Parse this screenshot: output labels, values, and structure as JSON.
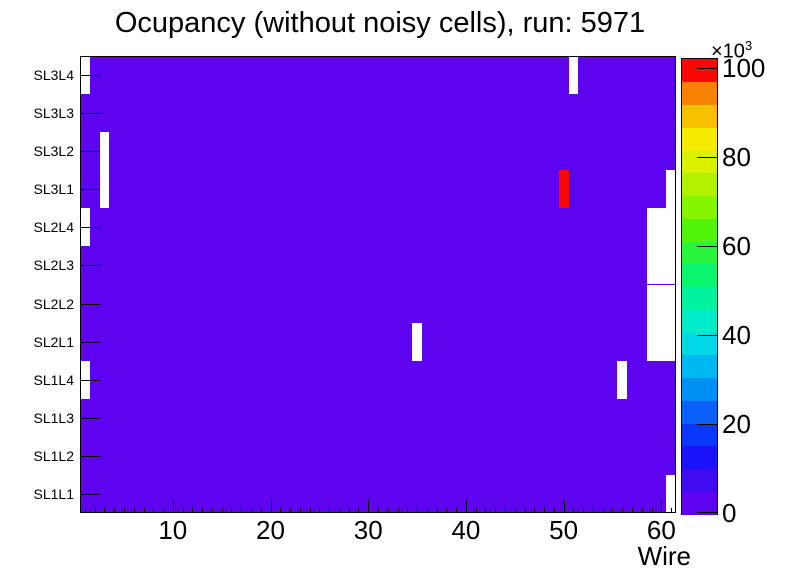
{
  "title": "Ocupancy (without noisy cells), run: 5971",
  "chart_data": {
    "type": "heatmap",
    "xlabel": "Wire",
    "x_range": [
      0.5,
      61.5
    ],
    "n_wires": 61,
    "x_major_ticks": [
      10,
      20,
      30,
      40,
      50,
      60
    ],
    "rows_bottom_to_top": [
      "SL1L1",
      "SL1L2",
      "SL1L3",
      "SL1L4",
      "SL2L1",
      "SL2L2",
      "SL2L3",
      "SL2L4",
      "SL3L1",
      "SL3L2",
      "SL3L3",
      "SL3L4"
    ],
    "background_value_color": "#5e03f0",
    "empty_color": "#ffffff",
    "empty_cells": [
      {
        "wire": 1,
        "row": "SL3L4"
      },
      {
        "wire": 1,
        "row": "SL2L4"
      },
      {
        "wire": 1,
        "row": "SL1L4"
      },
      {
        "wire": 3,
        "row": "SL3L2"
      },
      {
        "wire": 3,
        "row": "SL3L1"
      },
      {
        "wire": 35,
        "row": "SL2L1"
      },
      {
        "wire": 51,
        "row": "SL3L4"
      },
      {
        "wire": 56,
        "row": "SL1L4"
      },
      {
        "wire": 59,
        "row": "SL2L4"
      },
      {
        "wire": 59,
        "row": "SL2L3"
      },
      {
        "wire": 59,
        "row": "SL2L2"
      },
      {
        "wire": 59,
        "row": "SL2L1"
      },
      {
        "wire": 60,
        "row": "SL2L4"
      },
      {
        "wire": 60,
        "row": "SL2L3"
      },
      {
        "wire": 60,
        "row": "SL2L2"
      },
      {
        "wire": 60,
        "row": "SL2L1"
      },
      {
        "wire": 61,
        "row": "SL3L1"
      },
      {
        "wire": 61,
        "row": "SL2L4"
      },
      {
        "wire": 61,
        "row": "SL2L3"
      },
      {
        "wire": 61,
        "row": "SL2L2"
      },
      {
        "wire": 61,
        "row": "SL2L1"
      },
      {
        "wire": 61,
        "row": "SL1L1"
      }
    ],
    "hot_cells": [
      {
        "wire": 50,
        "row": "SL3L1",
        "value": 102000,
        "color": "#f70800"
      }
    ],
    "colorbar": {
      "zmax": 102300,
      "tick_values_thousands": [
        0,
        20,
        40,
        60,
        80,
        100
      ],
      "exponent_label": "×10",
      "exponent": "3",
      "palette_bottom_to_top": [
        "#5e03f0",
        "#3f0cf2",
        "#1c13fa",
        "#0a38fa",
        "#0a60f8",
        "#008ff5",
        "#00b8f0",
        "#00d8e8",
        "#00ecc8",
        "#00f29e",
        "#0cf56e",
        "#28f53c",
        "#52f50a",
        "#85f500",
        "#b0f200",
        "#d8f200",
        "#f5ea00",
        "#f5c000",
        "#f58200",
        "#f70800"
      ]
    }
  }
}
